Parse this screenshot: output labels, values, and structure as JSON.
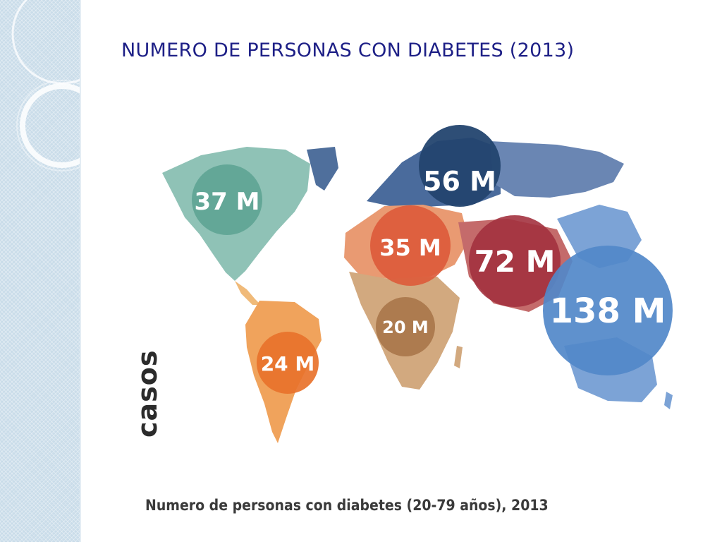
{
  "slide": {
    "title": "NUMERO DE PERSONAS CON DIABETES (2013)"
  },
  "map": {
    "vertical_label": "casos",
    "caption": "Numero de personas con diabetes (20-79 años), 2013",
    "regions": [
      {
        "id": "north-america",
        "label": "37 M",
        "value_millions": 37,
        "color": "#5fa595"
      },
      {
        "id": "europe",
        "label": "56 M",
        "value_millions": 56,
        "color": "#23456f"
      },
      {
        "id": "middle-east-north-africa",
        "label": "35 M",
        "value_millions": 35,
        "color": "#dd5a3a"
      },
      {
        "id": "south-east-asia",
        "label": "72 M",
        "value_millions": 72,
        "color": "#a3323f"
      },
      {
        "id": "western-pacific",
        "label": "138 M",
        "value_millions": 138,
        "color": "#5188c9"
      },
      {
        "id": "africa",
        "label": "20 M",
        "value_millions": 20,
        "color": "#a8764a"
      },
      {
        "id": "south-central-america",
        "label": "24 M",
        "value_millions": 24,
        "color": "#e8722b"
      }
    ]
  }
}
